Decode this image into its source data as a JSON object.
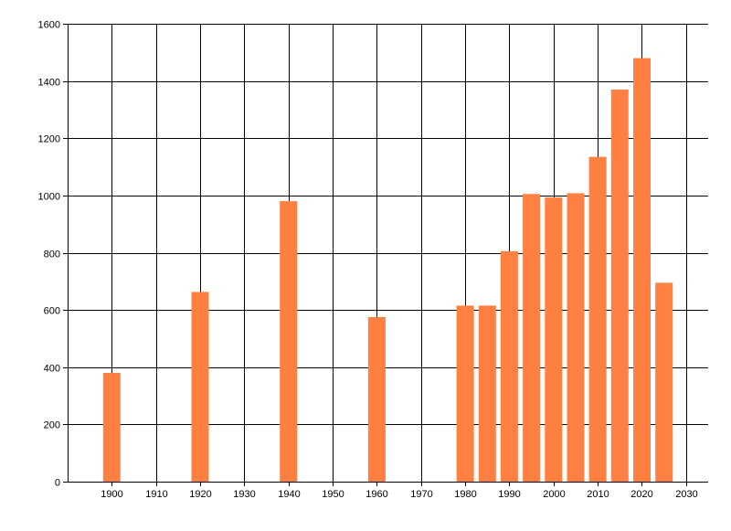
{
  "chart_data": {
    "type": "bar",
    "title": "",
    "xlabel": "",
    "ylabel": "",
    "x": [
      1900,
      1920,
      1940,
      1960,
      1980,
      1985,
      1990,
      1995,
      2000,
      2005,
      2010,
      2015,
      2020,
      2025
    ],
    "values": [
      380,
      663,
      980,
      575,
      615,
      615,
      805,
      1005,
      993,
      1008,
      1135,
      1370,
      1480,
      695
    ],
    "xlim": [
      1890,
      2035
    ],
    "ylim": [
      0,
      1600
    ],
    "x_ticks": [
      1900,
      1910,
      1920,
      1930,
      1940,
      1950,
      1960,
      1970,
      1980,
      1990,
      2000,
      2010,
      2020,
      2030
    ],
    "y_ticks": [
      0,
      200,
      400,
      600,
      800,
      1000,
      1200,
      1400,
      1600
    ],
    "grid": true,
    "legend": "none",
    "bar_color": "#ff8040",
    "grid_color": "#000000"
  }
}
